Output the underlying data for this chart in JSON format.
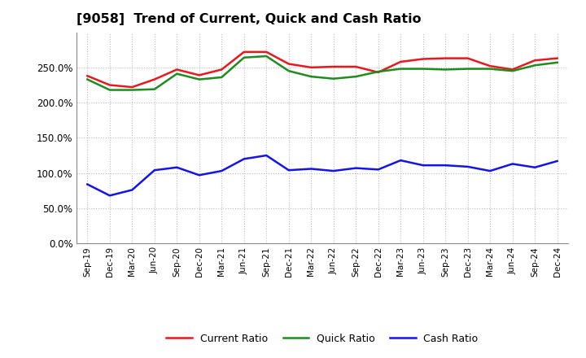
{
  "title": "[9058]  Trend of Current, Quick and Cash Ratio",
  "x_labels": [
    "Sep-19",
    "Dec-19",
    "Mar-20",
    "Jun-20",
    "Sep-20",
    "Dec-20",
    "Mar-21",
    "Jun-21",
    "Sep-21",
    "Dec-21",
    "Mar-22",
    "Jun-22",
    "Sep-22",
    "Dec-22",
    "Mar-23",
    "Jun-23",
    "Sep-23",
    "Dec-23",
    "Mar-24",
    "Jun-24",
    "Sep-24",
    "Dec-24"
  ],
  "current_ratio": [
    238,
    225,
    222,
    233,
    247,
    239,
    247,
    272,
    272,
    255,
    250,
    251,
    251,
    243,
    258,
    262,
    263,
    263,
    252,
    247,
    260,
    263
  ],
  "quick_ratio": [
    233,
    218,
    218,
    219,
    241,
    233,
    236,
    264,
    266,
    245,
    237,
    234,
    237,
    244,
    248,
    248,
    247,
    248,
    248,
    245,
    253,
    257
  ],
  "cash_ratio": [
    84,
    68,
    76,
    104,
    108,
    97,
    103,
    120,
    125,
    104,
    106,
    103,
    107,
    105,
    118,
    111,
    111,
    109,
    103,
    113,
    108,
    117
  ],
  "current_color": "#e8191e",
  "quick_color": "#1e8c1e",
  "cash_color": "#1414e8",
  "ylim": [
    0,
    300
  ],
  "yticks": [
    0,
    50,
    100,
    150,
    200,
    250
  ],
  "ytick_labels": [
    "0.0%",
    "50.0%",
    "100.0%",
    "150.0%",
    "200.0%",
    "250.0%"
  ],
  "bg_color": "#ffffff",
  "plot_bg_color": "#ffffff",
  "grid_color": "#aaaaaa",
  "legend_labels": [
    "Current Ratio",
    "Quick Ratio",
    "Cash Ratio"
  ],
  "line_width": 1.8
}
